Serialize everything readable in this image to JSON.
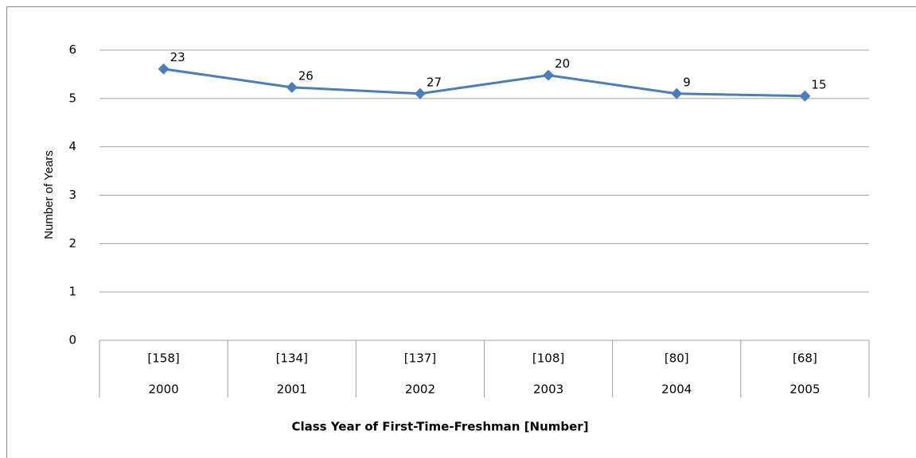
{
  "chart_data": {
    "type": "line",
    "y_label": "Number of Years",
    "x_label": "Class Year of First-Time-Freshman [Number]",
    "categories": [
      "2000",
      "2001",
      "2002",
      "2003",
      "2004",
      "2005"
    ],
    "category_counts": [
      "[158]",
      "[134]",
      "[137]",
      "[108]",
      "[80]",
      "[68]"
    ],
    "values": [
      5.61,
      5.23,
      5.1,
      5.48,
      5.1,
      5.05
    ],
    "point_labels": [
      23,
      26,
      27,
      20,
      9,
      15
    ],
    "color": "#4a7ebb",
    "ylim": [
      0,
      6
    ],
    "yticks": [
      0,
      1,
      2,
      3,
      4,
      5,
      6
    ],
    "grid": true
  }
}
